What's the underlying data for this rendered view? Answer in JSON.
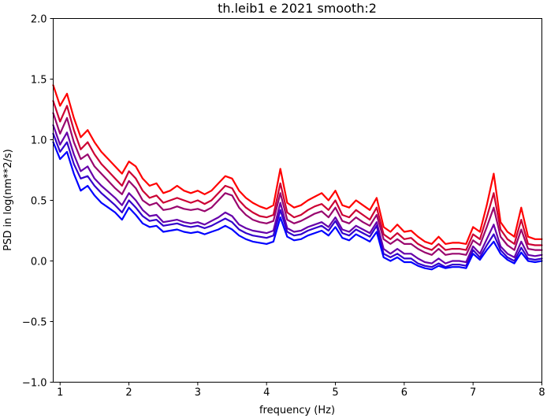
{
  "chart_data": {
    "type": "line",
    "title": "th.leib1 e 2021 smooth:2",
    "xlabel": "frequency (Hz)",
    "ylabel": "PSD in log(nm**2/s)",
    "xlim": [
      0.9,
      8.0
    ],
    "ylim": [
      -1.0,
      2.0
    ],
    "x_ticks": [
      1,
      2,
      3,
      4,
      5,
      6,
      7,
      8
    ],
    "x_tick_labels": [
      "1",
      "2",
      "3",
      "4",
      "5",
      "6",
      "7",
      "8"
    ],
    "y_ticks": [
      -1.0,
      -0.5,
      0.0,
      0.5,
      1.0,
      1.5,
      2.0
    ],
    "y_tick_labels": [
      "−1.0",
      "−0.5",
      "0.0",
      "0.5",
      "1.0",
      "1.5",
      "2.0"
    ],
    "grid": false,
    "legend": "none",
    "x": [
      0.9,
      1.0,
      1.1,
      1.2,
      1.3,
      1.4,
      1.5,
      1.6,
      1.7,
      1.8,
      1.9,
      2.0,
      2.1,
      2.2,
      2.3,
      2.4,
      2.5,
      2.6,
      2.7,
      2.8,
      2.9,
      3.0,
      3.1,
      3.2,
      3.3,
      3.4,
      3.5,
      3.6,
      3.7,
      3.8,
      3.9,
      4.0,
      4.1,
      4.2,
      4.3,
      4.4,
      4.5,
      4.6,
      4.7,
      4.8,
      4.9,
      5.0,
      5.1,
      5.2,
      5.3,
      5.4,
      5.5,
      5.6,
      5.7,
      5.8,
      5.9,
      6.0,
      6.1,
      6.2,
      6.3,
      6.4,
      6.5,
      6.6,
      6.7,
      6.8,
      6.9,
      7.0,
      7.1,
      7.2,
      7.3,
      7.4,
      7.5,
      7.6,
      7.7,
      7.8,
      7.9,
      8.0
    ],
    "series": [
      {
        "color": "#ff0000",
        "values": [
          1.45,
          1.28,
          1.38,
          1.18,
          1.02,
          1.08,
          0.98,
          0.9,
          0.84,
          0.78,
          0.72,
          0.82,
          0.78,
          0.68,
          0.62,
          0.64,
          0.56,
          0.58,
          0.62,
          0.58,
          0.56,
          0.58,
          0.55,
          0.58,
          0.64,
          0.7,
          0.68,
          0.58,
          0.52,
          0.48,
          0.45,
          0.43,
          0.46,
          0.76,
          0.48,
          0.44,
          0.46,
          0.5,
          0.53,
          0.56,
          0.5,
          0.58,
          0.46,
          0.44,
          0.5,
          0.46,
          0.42,
          0.52,
          0.28,
          0.24,
          0.3,
          0.24,
          0.25,
          0.2,
          0.16,
          0.14,
          0.2,
          0.14,
          0.15,
          0.15,
          0.14,
          0.28,
          0.24,
          0.46,
          0.72,
          0.32,
          0.24,
          0.2,
          0.44,
          0.2,
          0.18,
          0.18
        ]
      },
      {
        "color": "#cc0033",
        "values": [
          1.32,
          1.15,
          1.28,
          1.08,
          0.92,
          0.98,
          0.88,
          0.8,
          0.74,
          0.68,
          0.62,
          0.74,
          0.68,
          0.58,
          0.52,
          0.54,
          0.48,
          0.5,
          0.52,
          0.5,
          0.48,
          0.5,
          0.47,
          0.5,
          0.56,
          0.62,
          0.6,
          0.5,
          0.44,
          0.4,
          0.37,
          0.36,
          0.38,
          0.64,
          0.4,
          0.36,
          0.38,
          0.42,
          0.45,
          0.47,
          0.42,
          0.5,
          0.38,
          0.36,
          0.42,
          0.38,
          0.34,
          0.44,
          0.22,
          0.18,
          0.23,
          0.18,
          0.19,
          0.14,
          0.11,
          0.09,
          0.14,
          0.09,
          0.1,
          0.1,
          0.09,
          0.22,
          0.18,
          0.36,
          0.56,
          0.26,
          0.18,
          0.14,
          0.34,
          0.14,
          0.13,
          0.13
        ]
      },
      {
        "color": "#99066e",
        "values": [
          1.22,
          1.05,
          1.18,
          0.98,
          0.84,
          0.88,
          0.78,
          0.72,
          0.66,
          0.6,
          0.55,
          0.66,
          0.6,
          0.5,
          0.46,
          0.48,
          0.42,
          0.43,
          0.45,
          0.43,
          0.42,
          0.43,
          0.41,
          0.44,
          0.5,
          0.56,
          0.54,
          0.44,
          0.38,
          0.34,
          0.32,
          0.31,
          0.33,
          0.56,
          0.34,
          0.31,
          0.33,
          0.36,
          0.39,
          0.41,
          0.36,
          0.44,
          0.33,
          0.31,
          0.36,
          0.32,
          0.29,
          0.38,
          0.18,
          0.14,
          0.18,
          0.14,
          0.14,
          0.1,
          0.07,
          0.05,
          0.1,
          0.05,
          0.06,
          0.06,
          0.05,
          0.17,
          0.13,
          0.28,
          0.44,
          0.2,
          0.13,
          0.09,
          0.26,
          0.1,
          0.09,
          0.09
        ]
      },
      {
        "color": "#6600aa",
        "values": [
          1.12,
          0.96,
          1.06,
          0.88,
          0.74,
          0.78,
          0.68,
          0.62,
          0.57,
          0.52,
          0.46,
          0.56,
          0.5,
          0.42,
          0.37,
          0.38,
          0.32,
          0.33,
          0.34,
          0.32,
          0.31,
          0.32,
          0.3,
          0.33,
          0.36,
          0.4,
          0.37,
          0.3,
          0.27,
          0.25,
          0.24,
          0.23,
          0.25,
          0.48,
          0.27,
          0.24,
          0.25,
          0.28,
          0.3,
          0.32,
          0.28,
          0.36,
          0.26,
          0.24,
          0.29,
          0.26,
          0.23,
          0.32,
          0.1,
          0.06,
          0.1,
          0.06,
          0.06,
          0.02,
          -0.01,
          -0.02,
          0.02,
          -0.02,
          0.0,
          0.0,
          -0.01,
          0.12,
          0.06,
          0.18,
          0.3,
          0.12,
          0.06,
          0.03,
          0.16,
          0.05,
          0.04,
          0.05
        ]
      },
      {
        "color": "#3300cc",
        "values": [
          1.05,
          0.9,
          0.98,
          0.8,
          0.68,
          0.7,
          0.62,
          0.56,
          0.51,
          0.46,
          0.4,
          0.5,
          0.44,
          0.37,
          0.33,
          0.34,
          0.29,
          0.3,
          0.31,
          0.29,
          0.28,
          0.29,
          0.27,
          0.29,
          0.32,
          0.35,
          0.32,
          0.26,
          0.23,
          0.21,
          0.2,
          0.19,
          0.21,
          0.42,
          0.24,
          0.21,
          0.22,
          0.25,
          0.27,
          0.29,
          0.25,
          0.33,
          0.23,
          0.21,
          0.26,
          0.23,
          0.2,
          0.29,
          0.06,
          0.03,
          0.06,
          0.02,
          0.02,
          -0.02,
          -0.04,
          -0.05,
          -0.02,
          -0.05,
          -0.03,
          -0.03,
          -0.04,
          0.09,
          0.03,
          0.13,
          0.22,
          0.09,
          0.03,
          0.0,
          0.11,
          0.02,
          0.01,
          0.02
        ]
      },
      {
        "color": "#0000ff",
        "values": [
          0.98,
          0.84,
          0.9,
          0.72,
          0.58,
          0.62,
          0.54,
          0.48,
          0.44,
          0.4,
          0.34,
          0.44,
          0.38,
          0.31,
          0.28,
          0.29,
          0.24,
          0.25,
          0.26,
          0.24,
          0.23,
          0.24,
          0.22,
          0.24,
          0.26,
          0.29,
          0.26,
          0.21,
          0.18,
          0.16,
          0.15,
          0.14,
          0.16,
          0.36,
          0.2,
          0.17,
          0.18,
          0.21,
          0.23,
          0.25,
          0.21,
          0.28,
          0.19,
          0.17,
          0.22,
          0.19,
          0.16,
          0.24,
          0.03,
          0.0,
          0.03,
          -0.01,
          -0.01,
          -0.04,
          -0.06,
          -0.07,
          -0.04,
          -0.06,
          -0.05,
          -0.05,
          -0.06,
          0.06,
          0.01,
          0.09,
          0.16,
          0.06,
          0.01,
          -0.02,
          0.07,
          0.0,
          -0.01,
          0.0
        ]
      }
    ]
  }
}
